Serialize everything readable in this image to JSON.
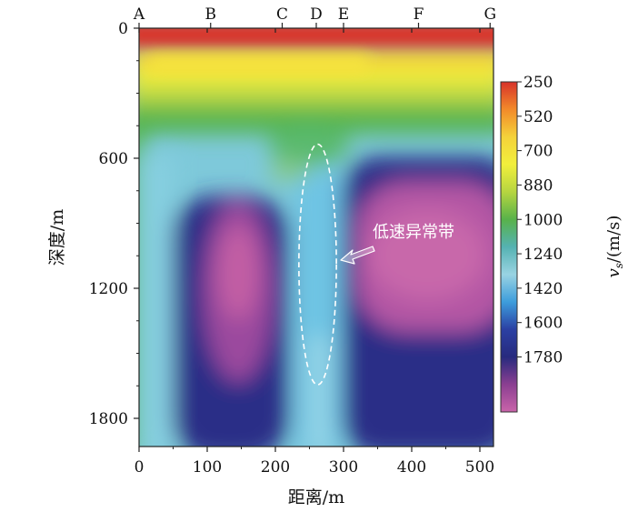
{
  "chart_data": {
    "type": "heatmap",
    "xlabel": "距离/m",
    "ylabel": "深度/m",
    "x_ticks": [
      "0",
      "100",
      "200",
      "300",
      "400",
      "500"
    ],
    "y_ticks": [
      "0",
      "600",
      "1200",
      "1800"
    ],
    "xlim": [
      0,
      520
    ],
    "ylim": [
      0,
      1930
    ],
    "y_inverted": true,
    "point_labels": [
      {
        "label": "A",
        "x": 0
      },
      {
        "label": "B",
        "x": 105
      },
      {
        "label": "C",
        "x": 210
      },
      {
        "label": "D",
        "x": 260
      },
      {
        "label": "E",
        "x": 300
      },
      {
        "label": "F",
        "x": 410
      },
      {
        "label": "G",
        "x": 515
      }
    ],
    "colorbar": {
      "title_symbol": "v",
      "title_sub": "s",
      "title_unit": "/(m/s)",
      "ticks": [
        "250",
        "520",
        "700",
        "880",
        "1000",
        "1240",
        "1420",
        "1600",
        "1780"
      ],
      "colors": [
        "#d7322a",
        "#f28a2a",
        "#f4d23a",
        "#f2ef3c",
        "#b6d540",
        "#58b24a",
        "#55b2b2",
        "#99d3e2",
        "#3d9ddc",
        "#2b40a3",
        "#272a7e",
        "#8b3f91",
        "#c964aa"
      ]
    },
    "annotation": {
      "text": "低速异常带",
      "ellipse_center": [
        262,
        1090
      ],
      "ellipse_extent_x": [
        235,
        290
      ],
      "ellipse_extent_y": [
        690,
        1800
      ]
    }
  }
}
